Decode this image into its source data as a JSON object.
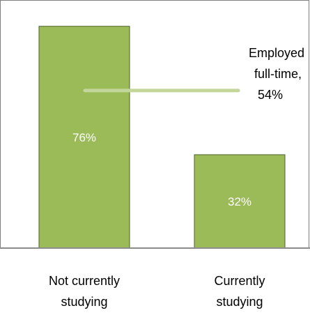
{
  "chart_data": {
    "type": "bar",
    "categories": [
      [
        "Not currently",
        "studying"
      ],
      [
        "Currently",
        "studying"
      ]
    ],
    "values": [
      76,
      32
    ],
    "data_labels": [
      "76%",
      "32%"
    ],
    "ylim": [
      0,
      85
    ],
    "grid": false,
    "reference_line": {
      "value": 54,
      "label_lines": [
        "Employed",
        "full-time,",
        "54%"
      ]
    },
    "colors": {
      "bar": "#9bbb59",
      "bar_border": "#4f6228",
      "reference_line": "#c3d69b",
      "data_label_text": "#ffffff"
    }
  }
}
